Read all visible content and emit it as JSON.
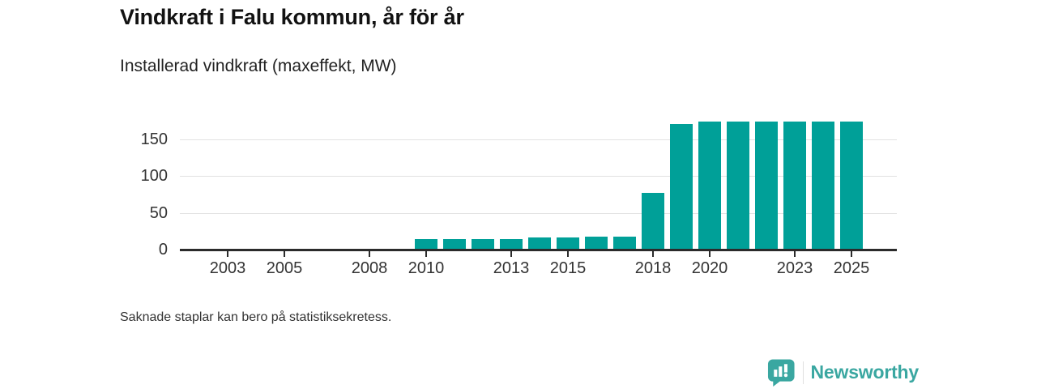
{
  "header": {
    "title": "Vindkraft i Falu kommun, år för år",
    "subtitle": "Installerad vindkraft (maxeffekt, MW)"
  },
  "chart_data": {
    "type": "bar",
    "title": "Vindkraft i Falu kommun, år för år",
    "subtitle": "Installerad vindkraft (maxeffekt, MW)",
    "ylabel": "Installerad vindkraft (maxeffekt, MW)",
    "xlabel": "",
    "unit": "MW",
    "x": [
      2002,
      2003,
      2004,
      2005,
      2006,
      2007,
      2008,
      2009,
      2010,
      2011,
      2012,
      2013,
      2014,
      2015,
      2016,
      2017,
      2018,
      2019,
      2020,
      2021,
      2022,
      2023,
      2024,
      2025
    ],
    "values": [
      null,
      null,
      null,
      null,
      null,
      null,
      null,
      null,
      14,
      14,
      14,
      14,
      16,
      16,
      18,
      18,
      77,
      170,
      174,
      174,
      174,
      174,
      174,
      174
    ],
    "missing_value_meaning": "Saknade staplar kan bero på statistiksekretess.",
    "x_tick_years": [
      2003,
      2005,
      2008,
      2010,
      2013,
      2015,
      2018,
      2020,
      2023,
      2025
    ],
    "y_ticks": [
      0,
      50,
      100,
      150
    ],
    "ylim": [
      0,
      187
    ],
    "grid": true,
    "legend": "none",
    "bar_color": "#00a098",
    "axis_color": "#2b2b2b",
    "grid_color": "#e2e2e2"
  },
  "footnote": "Saknade staplar kan bero på statistiksekretess.",
  "branding": {
    "logo_text": "Newsworthy",
    "logo_color": "#3aa7a1",
    "logo_icon": "newsworthy-speech-bubble-barchart-icon"
  }
}
